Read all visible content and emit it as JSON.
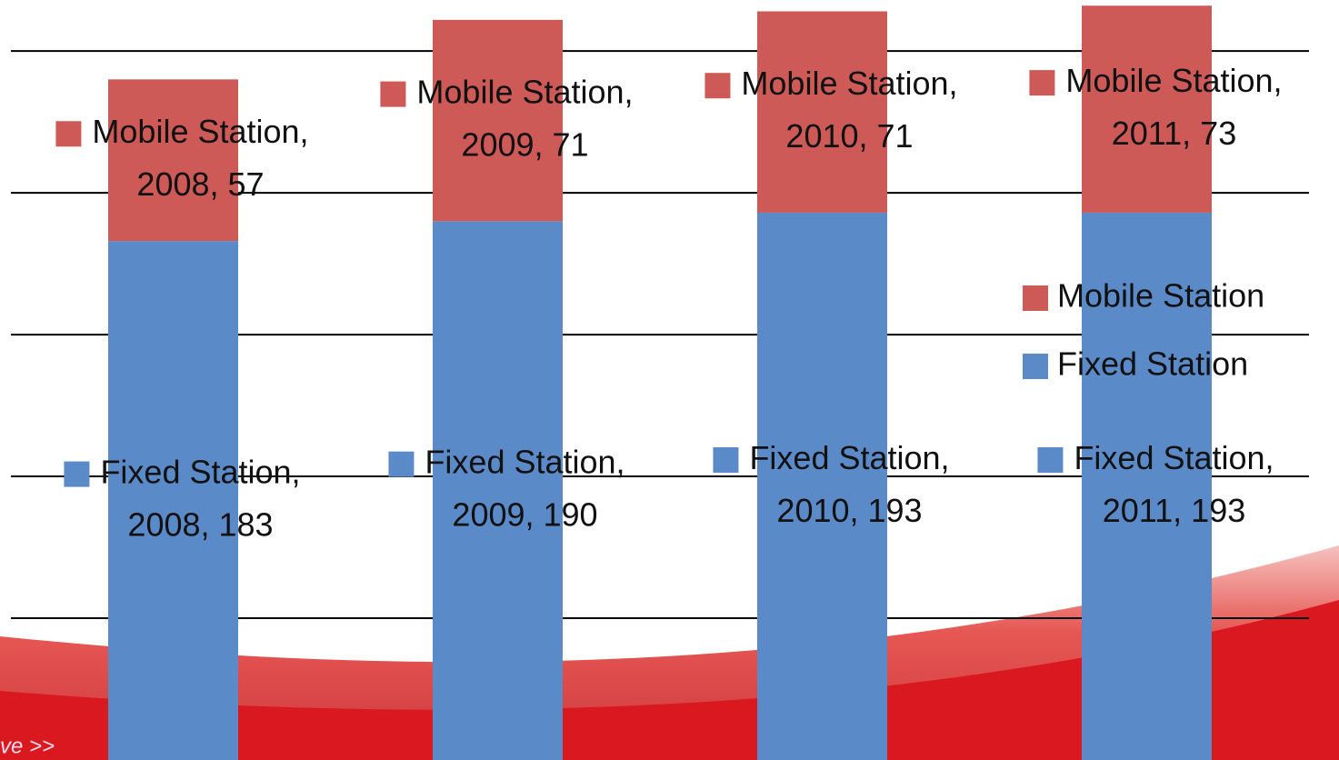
{
  "chart_data": {
    "type": "stacked_bar",
    "categories": [
      "2008",
      "2009",
      "2010",
      "2011"
    ],
    "series": [
      {
        "name": "Fixed Station",
        "color": "#5b8ac8",
        "values": [
          183,
          190,
          193,
          193
        ],
        "value_labels": [
          "Fixed Station, 2008, 183",
          "Fixed Station, 2009, 190",
          "Fixed Station, 2010, 193",
          "Fixed Station, 2011, 193"
        ]
      },
      {
        "name": "Mobile Station",
        "color": "#cd5a56",
        "values": [
          57,
          71,
          71,
          73
        ],
        "value_labels": [
          "Mobile Station, 2008, 57",
          "Mobile Station, 2009, 71",
          "Mobile Station, 2010, 71",
          "Mobile Station, 2011, 73"
        ]
      }
    ],
    "ylim": [
      0,
      268
    ],
    "yticks": [
      50,
      100,
      150,
      200,
      250
    ],
    "grid": true,
    "legend": "right",
    "annotations": [
      "ve >>"
    ]
  }
}
